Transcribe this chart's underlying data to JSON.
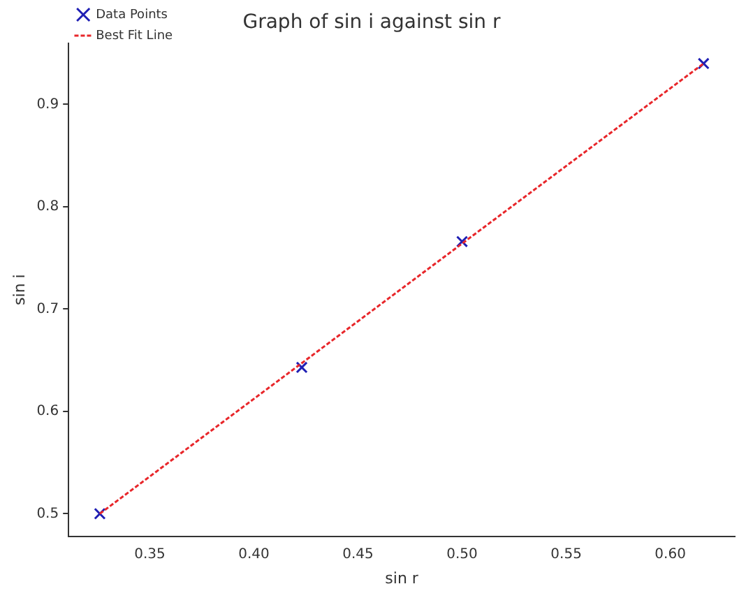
{
  "chart_data": {
    "type": "scatter",
    "title": "Graph of sin i against sin r",
    "xlabel": "sin r",
    "ylabel": "sin i",
    "xlim": [
      0.311,
      0.631
    ],
    "xticks": [
      0.35,
      {
        "value": 0.4,
        "label": "0.40"
      },
      0.45,
      {
        "value": 0.5,
        "label": "0.50"
      },
      0.55,
      {
        "value": 0.6,
        "label": "0.60"
      }
    ],
    "ylim": [
      0.478,
      0.96
    ],
    "yticks": [
      0.5,
      0.6,
      0.7,
      0.8,
      0.9
    ],
    "grid": false,
    "legend": "top left",
    "series": [
      {
        "name": "Data Points",
        "type": "scatter",
        "color": "#1f1fb4",
        "marker": "cross",
        "x": [
          0.326,
          0.423,
          0.5,
          0.616
        ],
        "values": [
          0.5,
          0.643,
          0.766,
          0.94
        ]
      },
      {
        "name": "Best Fit Line",
        "type": "line",
        "color": "#e8262a",
        "line_style": "dashed",
        "marker": "none",
        "x": [
          0.326,
          0.616
        ],
        "values": [
          0.5,
          0.94
        ]
      }
    ]
  }
}
